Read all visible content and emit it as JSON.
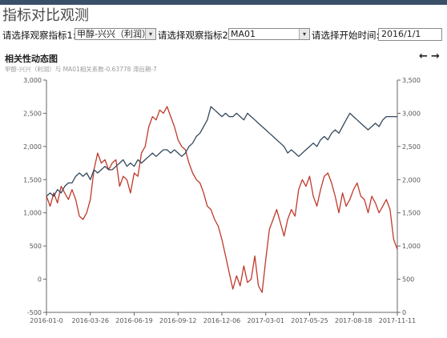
{
  "page": {
    "title": "指标对比观测"
  },
  "filters": {
    "indicator1_label": "请选择观察指标1:",
    "indicator1_value": "甲醇-兴兴（利润）",
    "indicator2_label": "请选择观察指标2:",
    "indicator2_value": "MA01",
    "start_label": "请选择开始时间:",
    "start_value": "2016/1/1"
  },
  "chart": {
    "title": "相关性动态图",
    "subtitle": "甲醇-兴兴（利润）与 MA01相关系数-0.63778 滞后期-7",
    "prev_icon": "←",
    "next_icon": "→"
  },
  "colors": {
    "series1": "#c0392b",
    "series2": "#34495e",
    "topbar": "#3a5069"
  },
  "chart_data": {
    "type": "line",
    "x_labels": [
      "2016-01-0",
      "2016-03-26",
      "2016-06-19",
      "2016-09-12",
      "2016-12-06",
      "2017-03-01",
      "2017-05-25",
      "2017-08-18",
      "2017-11-11"
    ],
    "y_left": {
      "ticks": [
        "-500",
        "0",
        "500",
        "1,000",
        "1,500",
        "2,000",
        "2,500",
        "3,000"
      ],
      "ylim": [
        -500,
        3000
      ]
    },
    "y_right": {
      "ticks": [
        "0",
        "500",
        "1,000",
        "1,500",
        "2,000",
        "2,500",
        "3,000",
        "3,500"
      ],
      "ylim": [
        0,
        3500
      ]
    },
    "grid": false,
    "series": [
      {
        "axis": "left",
        "values": [
          1250,
          1100,
          1300,
          1150,
          1400,
          1300,
          1200,
          1350,
          1200,
          950,
          900,
          1000,
          1200,
          1650,
          1900,
          1750,
          1800,
          1650,
          1750,
          1800,
          1400,
          1550,
          1500,
          1300,
          1600,
          1550,
          1900,
          2000,
          2300,
          2450,
          2400,
          2550,
          2500,
          2600,
          2450,
          2300,
          2100,
          2000,
          1950,
          1750,
          1600,
          1500,
          1450,
          1300,
          1100,
          1050,
          900,
          800,
          600,
          350,
          100,
          -150,
          50,
          -100,
          200,
          -50,
          0,
          350,
          -100,
          -200,
          300,
          750,
          900,
          1050,
          850,
          650,
          900,
          1050,
          950,
          1350,
          1500,
          1400,
          1550,
          1250,
          1100,
          1350,
          1550,
          1600,
          1450,
          1250,
          1000,
          1300,
          1100,
          1200,
          1350,
          1450,
          1250,
          1200,
          1000,
          1250,
          1150,
          1000,
          1100,
          1200,
          1050,
          600,
          450
        ]
      },
      {
        "axis": "right",
        "values": [
          1750,
          1800,
          1750,
          1850,
          1800,
          1900,
          1950,
          1950,
          2050,
          2100,
          2050,
          2100,
          2000,
          2150,
          2100,
          2150,
          2200,
          2150,
          2150,
          2200,
          2250,
          2300,
          2200,
          2250,
          2200,
          2300,
          2250,
          2300,
          2350,
          2400,
          2350,
          2400,
          2450,
          2450,
          2400,
          2450,
          2400,
          2350,
          2400,
          2500,
          2550,
          2650,
          2700,
          2800,
          2900,
          3100,
          3050,
          3000,
          2950,
          3000,
          2950,
          2950,
          3000,
          2950,
          2900,
          3000,
          2950,
          2900,
          2850,
          2800,
          2750,
          2700,
          2650,
          2600,
          2550,
          2500,
          2400,
          2450,
          2400,
          2350,
          2400,
          2450,
          2500,
          2550,
          2500,
          2600,
          2650,
          2600,
          2700,
          2750,
          2700,
          2800,
          2900,
          3000,
          2950,
          2900,
          2850,
          2800,
          2750,
          2800,
          2850,
          2800,
          2900,
          2950,
          2950,
          2950,
          2950
        ]
      }
    ]
  }
}
